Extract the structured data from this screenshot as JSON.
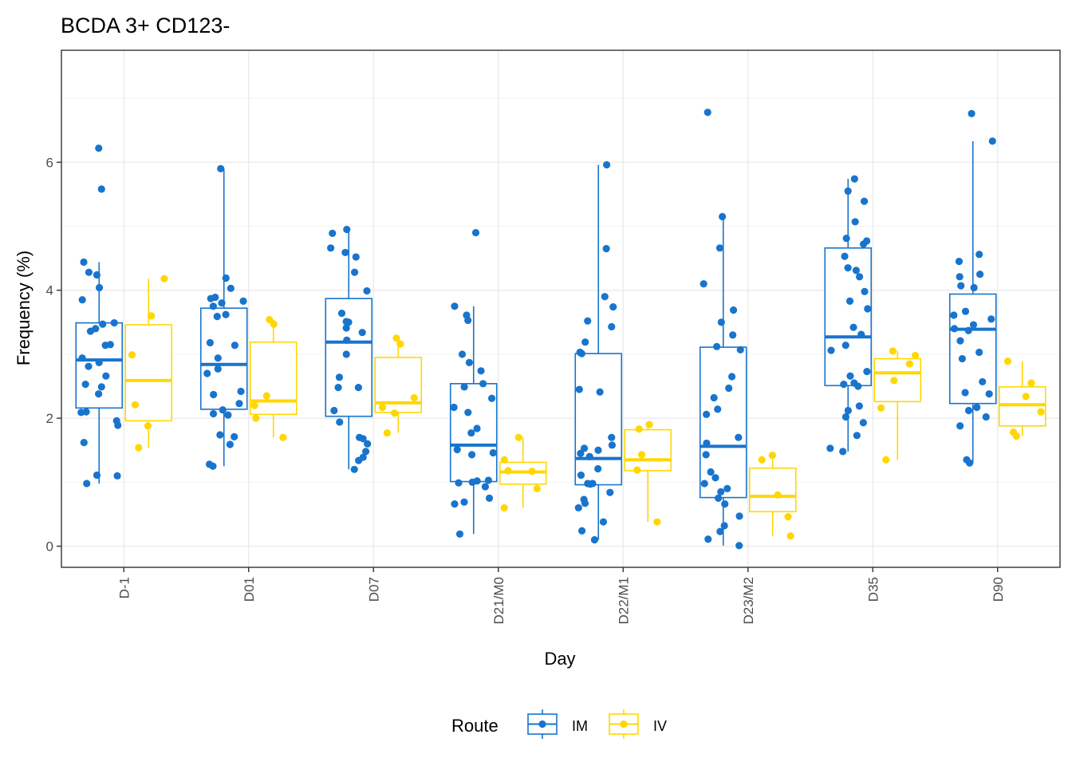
{
  "chart_data": {
    "type": "box",
    "title": "BCDA 3+ CD123-",
    "xlabel": "Day",
    "ylabel": "Frequency (%)",
    "ylim": [
      -0.33,
      7.75
    ],
    "yticks": [
      0,
      2,
      4,
      6
    ],
    "grid": true,
    "categories": [
      "D-1",
      "D01",
      "D07",
      "D21/M0",
      "D22/M1",
      "D23/M2",
      "D35",
      "D90"
    ],
    "legend": {
      "title": "Route",
      "placement": "bottom"
    },
    "series": [
      {
        "name": "IM",
        "color": "#1874CD",
        "boxes": [
          {
            "q1": 2.16,
            "median": 2.91,
            "q3": 3.49,
            "whisker_low": 0.98,
            "whisker_high": 4.44
          },
          {
            "q1": 2.14,
            "median": 2.84,
            "q3": 3.72,
            "whisker_low": 1.25,
            "whisker_high": 5.9
          },
          {
            "q1": 2.03,
            "median": 3.19,
            "q3": 3.87,
            "whisker_low": 1.2,
            "whisker_high": 4.95
          },
          {
            "q1": 1.01,
            "median": 1.58,
            "q3": 2.54,
            "whisker_low": 0.19,
            "whisker_high": 3.75
          },
          {
            "q1": 0.96,
            "median": 1.37,
            "q3": 3.01,
            "whisker_low": 0.1,
            "whisker_high": 5.96
          },
          {
            "q1": 0.76,
            "median": 1.56,
            "q3": 3.11,
            "whisker_low": 0.01,
            "whisker_high": 5.15
          },
          {
            "q1": 2.51,
            "median": 3.27,
            "q3": 4.66,
            "whisker_low": 1.48,
            "whisker_high": 5.74
          },
          {
            "q1": 2.23,
            "median": 3.39,
            "q3": 3.94,
            "whisker_low": 1.3,
            "whisker_high": 6.33
          }
        ],
        "points": [
          [
            6.22,
            5.58,
            4.44,
            4.28,
            4.24,
            4.04,
            3.85,
            3.49,
            3.47,
            3.4,
            3.36,
            3.15,
            3.14,
            2.94,
            2.87,
            2.81,
            2.66,
            2.53,
            2.49,
            2.38,
            2.1,
            2.09,
            1.96,
            1.89,
            1.62,
            1.11,
            1.1,
            0.98
          ],
          [
            5.9,
            4.19,
            4.03,
            3.89,
            3.87,
            3.83,
            3.8,
            3.75,
            3.62,
            3.59,
            3.18,
            3.14,
            2.94,
            2.77,
            2.7,
            2.42,
            2.37,
            2.23,
            2.13,
            2.07,
            2.05,
            1.74,
            1.71,
            1.59,
            1.28,
            1.25
          ],
          [
            4.95,
            4.89,
            4.66,
            4.59,
            4.52,
            4.28,
            3.99,
            3.64,
            3.51,
            3.5,
            3.41,
            3.34,
            3.22,
            3.0,
            2.64,
            2.48,
            2.48,
            2.12,
            1.94,
            1.7,
            1.68,
            1.6,
            1.48,
            1.39,
            1.34,
            1.2
          ],
          [
            4.9,
            3.75,
            3.61,
            3.53,
            3.0,
            2.87,
            2.74,
            2.54,
            2.49,
            2.31,
            2.17,
            2.09,
            1.84,
            1.77,
            1.51,
            1.46,
            1.43,
            1.03,
            1.02,
            1.0,
            0.99,
            0.93,
            0.75,
            0.69,
            0.66,
            0.19
          ],
          [
            5.96,
            4.65,
            3.9,
            3.74,
            3.52,
            3.43,
            3.19,
            3.03,
            3.01,
            2.45,
            2.41,
            1.7,
            1.58,
            1.53,
            1.5,
            1.45,
            1.4,
            1.21,
            1.11,
            0.98,
            0.98,
            0.97,
            0.84,
            0.73,
            0.67,
            0.6,
            0.38,
            0.24,
            0.1
          ],
          [
            6.78,
            5.15,
            4.66,
            4.1,
            3.69,
            3.5,
            3.3,
            3.12,
            3.07,
            2.65,
            2.47,
            2.32,
            2.14,
            2.06,
            1.7,
            1.61,
            1.43,
            1.16,
            1.07,
            0.98,
            0.9,
            0.85,
            0.75,
            0.66,
            0.47,
            0.32,
            0.23,
            0.11,
            0.01
          ],
          [
            5.74,
            5.55,
            5.39,
            5.07,
            4.81,
            4.77,
            4.72,
            4.53,
            4.35,
            4.31,
            4.21,
            3.98,
            3.83,
            3.71,
            3.42,
            3.31,
            3.14,
            3.06,
            2.73,
            2.66,
            2.55,
            2.53,
            2.5,
            2.19,
            2.12,
            2.02,
            1.93,
            1.73,
            1.53,
            1.48
          ],
          [
            6.76,
            6.33,
            4.56,
            4.45,
            4.25,
            4.21,
            4.07,
            4.04,
            3.67,
            3.61,
            3.55,
            3.46,
            3.4,
            3.37,
            3.21,
            3.03,
            2.93,
            2.57,
            2.4,
            2.38,
            2.17,
            2.12,
            2.02,
            1.88,
            1.35,
            1.3
          ]
        ]
      },
      {
        "name": "IV",
        "color": "#FFD700",
        "boxes": [
          {
            "q1": 1.96,
            "median": 2.59,
            "q3": 3.46,
            "whisker_low": 1.54,
            "whisker_high": 4.18
          },
          {
            "q1": 2.06,
            "median": 2.27,
            "q3": 3.19,
            "whisker_low": 1.7,
            "whisker_high": 3.54
          },
          {
            "q1": 2.09,
            "median": 2.24,
            "q3": 2.95,
            "whisker_low": 1.77,
            "whisker_high": 3.25
          },
          {
            "q1": 0.97,
            "median": 1.16,
            "q3": 1.31,
            "whisker_low": 0.6,
            "whisker_high": 1.7
          },
          {
            "q1": 1.18,
            "median": 1.35,
            "q3": 1.82,
            "whisker_low": 0.38,
            "whisker_high": 1.9
          },
          {
            "q1": 0.54,
            "median": 0.78,
            "q3": 1.22,
            "whisker_low": 0.16,
            "whisker_high": 1.42
          },
          {
            "q1": 2.26,
            "median": 2.71,
            "q3": 2.93,
            "whisker_low": 1.35,
            "whisker_high": 3.05
          },
          {
            "q1": 1.88,
            "median": 2.21,
            "q3": 2.49,
            "whisker_low": 1.72,
            "whisker_high": 2.89
          }
        ],
        "points": [
          [
            4.18,
            3.6,
            2.99,
            2.21,
            1.88,
            1.54
          ],
          [
            3.54,
            3.47,
            2.35,
            2.2,
            2.0,
            1.7
          ],
          [
            3.25,
            3.16,
            2.32,
            2.17,
            2.08,
            1.77
          ],
          [
            1.7,
            1.35,
            1.18,
            1.17,
            0.9,
            0.6
          ],
          [
            1.9,
            1.83,
            1.43,
            1.19,
            0.38
          ],
          [
            1.42,
            1.35,
            0.8,
            0.46,
            0.16
          ],
          [
            3.05,
            2.98,
            2.85,
            2.59,
            2.16,
            1.35
          ],
          [
            2.89,
            2.55,
            2.34,
            2.1,
            1.78,
            1.72
          ]
        ]
      }
    ]
  }
}
